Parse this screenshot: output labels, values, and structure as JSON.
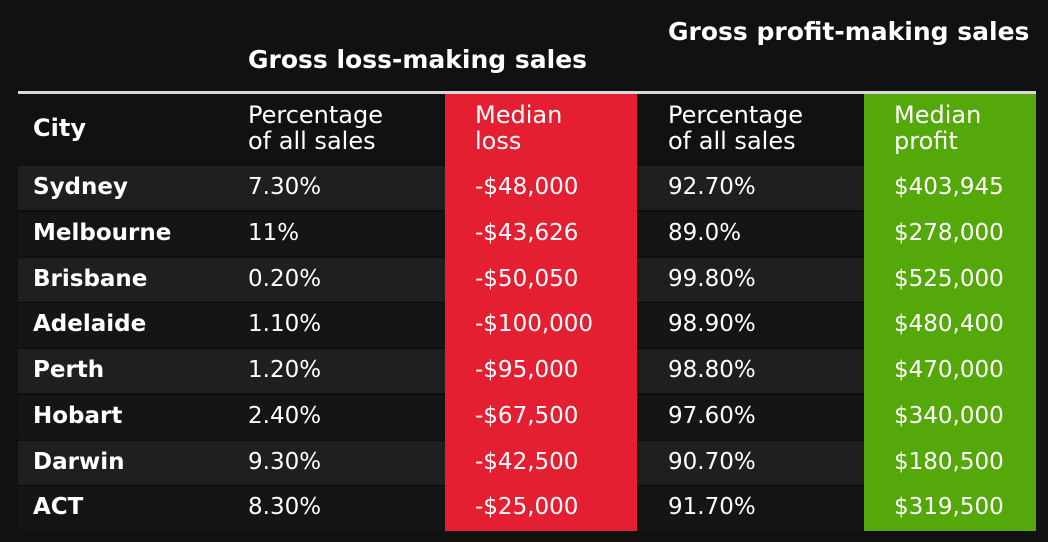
{
  "chart_data": {
    "type": "table",
    "group_headers": {
      "loss": "Gross loss-making sales",
      "profit": "Gross profit-making sales"
    },
    "columns": [
      {
        "key": "city",
        "label": "City"
      },
      {
        "key": "loss_pct",
        "label_lines": [
          "Percentage",
          "of all sales"
        ]
      },
      {
        "key": "loss_median",
        "label_lines": [
          "Median",
          "loss"
        ]
      },
      {
        "key": "profit_pct",
        "label_lines": [
          "Percentage",
          "of all sales"
        ]
      },
      {
        "key": "profit_median",
        "label_lines": [
          "Median",
          "profit"
        ]
      }
    ],
    "rows": [
      {
        "city": "Sydney",
        "loss_pct": "7.30%",
        "loss_median": "-$48,000",
        "profit_pct": "92.70%",
        "profit_median": "$403,945"
      },
      {
        "city": "Melbourne",
        "loss_pct": "11%",
        "loss_median": "-$43,626",
        "profit_pct": "89.0%",
        "profit_median": "$278,000"
      },
      {
        "city": "Brisbane",
        "loss_pct": "0.20%",
        "loss_median": "-$50,050",
        "profit_pct": "99.80%",
        "profit_median": "$525,000"
      },
      {
        "city": "Adelaide",
        "loss_pct": "1.10%",
        "loss_median": "-$100,000",
        "profit_pct": "98.90%",
        "profit_median": "$480,400"
      },
      {
        "city": "Perth",
        "loss_pct": "1.20%",
        "loss_median": "-$95,000",
        "profit_pct": "98.80%",
        "profit_median": "$470,000"
      },
      {
        "city": "Hobart",
        "loss_pct": "2.40%",
        "loss_median": "-$67,500",
        "profit_pct": "97.60%",
        "profit_median": "$340,000"
      },
      {
        "city": "Darwin",
        "loss_pct": "9.30%",
        "loss_median": "-$42,500",
        "profit_pct": "90.70%",
        "profit_median": "$180,500"
      },
      {
        "city": "ACT",
        "loss_pct": "8.30%",
        "loss_median": "-$25,000",
        "profit_pct": "91.70%",
        "profit_median": "$319,500"
      }
    ]
  },
  "colors": {
    "background": "#111111",
    "loss_accent": "#e51f32",
    "profit_accent": "#55a80a",
    "row_alt": "#1f1f1f",
    "row_base": "#151515",
    "rule": "#d9d9d9",
    "text": "#ffffff"
  }
}
